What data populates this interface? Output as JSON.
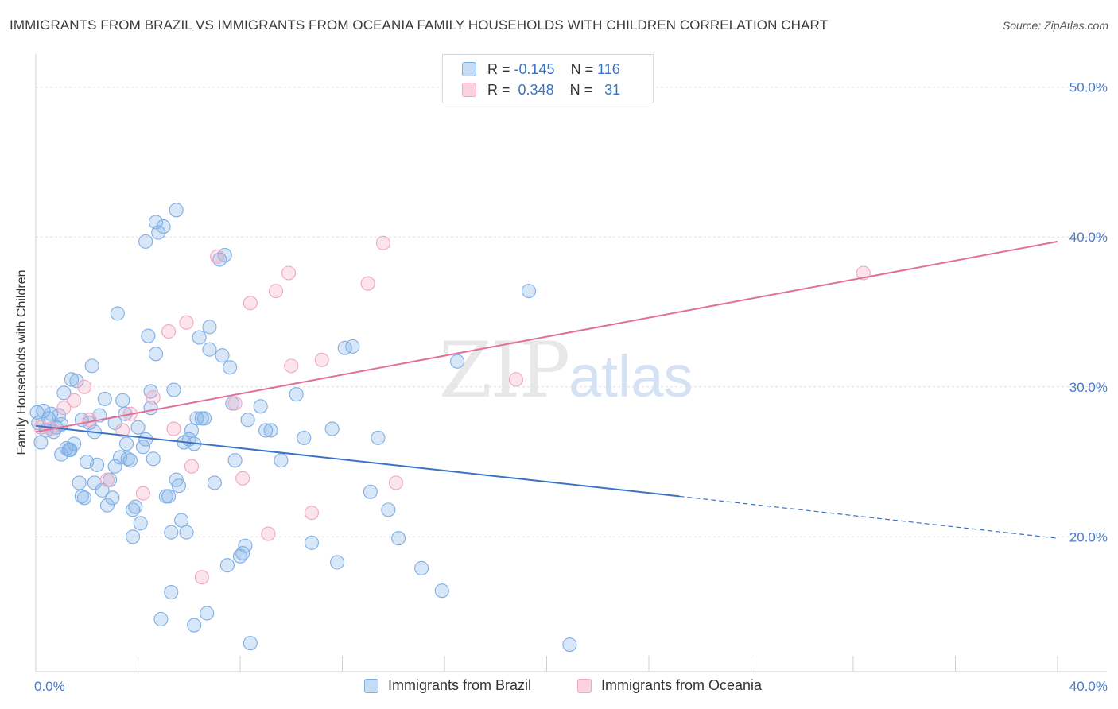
{
  "header": {
    "title": "IMMIGRANTS FROM BRAZIL VS IMMIGRANTS FROM OCEANIA FAMILY HOUSEHOLDS WITH CHILDREN CORRELATION CHART",
    "source": "Source: ZipAtlas.com"
  },
  "watermark": {
    "zip": "ZIP",
    "atlas": "atlas"
  },
  "legend_top": {
    "rows": [
      {
        "r_label": "R =",
        "r_value": "-0.145",
        "n_label": "N =",
        "n_value": "116",
        "color": "#7faee6"
      },
      {
        "r_label": "R =",
        "r_value": "0.348",
        "n_label": "N =",
        "n_value": "31",
        "color": "#f2a7bd"
      }
    ]
  },
  "legend_bottom": {
    "items": [
      {
        "label": "Immigrants from Brazil",
        "color": "#7faee6"
      },
      {
        "label": "Immigrants from Oceania",
        "color": "#f2a7bd"
      }
    ]
  },
  "chart_data": {
    "type": "scatter",
    "ylabel": "Family Households with Children",
    "xlabel": "",
    "xlim": [
      0,
      40
    ],
    "ylim": [
      11,
      52
    ],
    "x_tick_labels": [
      {
        "x": 0,
        "label": "0.0%"
      },
      {
        "x": 40,
        "label": "40.0%"
      }
    ],
    "y_tick_labels": [
      {
        "y": 20,
        "label": "20.0%"
      },
      {
        "y": 30,
        "label": "30.0%"
      },
      {
        "y": 40,
        "label": "40.0%"
      },
      {
        "y": 50,
        "label": "50.0%"
      }
    ],
    "grid": true,
    "series": [
      {
        "name": "Immigrants from Brazil",
        "color": "#7faee6",
        "line_color": "#3b73c4",
        "trend": {
          "x0": 0,
          "y0": 27.4,
          "x1": 25.2,
          "y1": 22.7,
          "dash_x1": 40,
          "dash_y1": 19.9
        },
        "points": [
          [
            0.1,
            27.6
          ],
          [
            0.2,
            26.3
          ],
          [
            0.3,
            28.4
          ],
          [
            0.4,
            27.1
          ],
          [
            0.5,
            27.9
          ],
          [
            0.6,
            28.2
          ],
          [
            0.7,
            27.0
          ],
          [
            0.8,
            27.3
          ],
          [
            0.9,
            28.1
          ],
          [
            1.0,
            27.5
          ],
          [
            1.0,
            25.5
          ],
          [
            1.1,
            29.6
          ],
          [
            1.2,
            25.9
          ],
          [
            1.3,
            25.8
          ],
          [
            1.4,
            30.5
          ],
          [
            1.5,
            26.2
          ],
          [
            1.6,
            30.4
          ],
          [
            1.7,
            23.6
          ],
          [
            1.8,
            22.7
          ],
          [
            1.8,
            27.8
          ],
          [
            1.9,
            22.6
          ],
          [
            2.0,
            25.0
          ],
          [
            2.1,
            27.6
          ],
          [
            2.2,
            31.4
          ],
          [
            2.3,
            23.6
          ],
          [
            2.3,
            27.0
          ],
          [
            2.4,
            24.8
          ],
          [
            2.5,
            28.1
          ],
          [
            2.6,
            23.1
          ],
          [
            2.7,
            29.2
          ],
          [
            2.8,
            22.1
          ],
          [
            2.9,
            23.8
          ],
          [
            3.0,
            22.6
          ],
          [
            3.1,
            24.7
          ],
          [
            3.1,
            27.6
          ],
          [
            3.2,
            34.9
          ],
          [
            3.3,
            25.3
          ],
          [
            3.4,
            29.1
          ],
          [
            3.5,
            28.2
          ],
          [
            3.6,
            25.2
          ],
          [
            3.7,
            25.1
          ],
          [
            3.8,
            21.8
          ],
          [
            3.8,
            20.0
          ],
          [
            3.9,
            22.0
          ],
          [
            4.0,
            27.3
          ],
          [
            4.1,
            20.9
          ],
          [
            4.2,
            26.0
          ],
          [
            4.3,
            26.5
          ],
          [
            4.3,
            39.7
          ],
          [
            4.4,
            33.4
          ],
          [
            4.5,
            28.6
          ],
          [
            4.5,
            29.7
          ],
          [
            4.6,
            25.2
          ],
          [
            4.7,
            41.0
          ],
          [
            4.7,
            32.2
          ],
          [
            4.8,
            40.3
          ],
          [
            4.9,
            14.5
          ],
          [
            5.0,
            40.7
          ],
          [
            5.1,
            22.7
          ],
          [
            5.2,
            22.7
          ],
          [
            5.3,
            16.3
          ],
          [
            5.3,
            20.3
          ],
          [
            5.4,
            29.8
          ],
          [
            5.5,
            41.8
          ],
          [
            5.5,
            23.8
          ],
          [
            5.6,
            23.4
          ],
          [
            5.7,
            21.1
          ],
          [
            5.8,
            26.3
          ],
          [
            5.9,
            20.3
          ],
          [
            6.0,
            26.5
          ],
          [
            6.1,
            27.1
          ],
          [
            6.2,
            26.2
          ],
          [
            6.2,
            14.1
          ],
          [
            6.3,
            27.9
          ],
          [
            6.4,
            33.3
          ],
          [
            6.5,
            27.9
          ],
          [
            6.6,
            27.9
          ],
          [
            6.7,
            14.9
          ],
          [
            6.8,
            34.0
          ],
          [
            6.8,
            32.5
          ],
          [
            7.0,
            23.6
          ],
          [
            7.2,
            38.5
          ],
          [
            7.3,
            32.1
          ],
          [
            7.4,
            38.8
          ],
          [
            7.5,
            18.1
          ],
          [
            7.6,
            31.3
          ],
          [
            7.7,
            28.9
          ],
          [
            7.8,
            25.1
          ],
          [
            8.0,
            18.7
          ],
          [
            8.1,
            18.9
          ],
          [
            8.2,
            19.4
          ],
          [
            8.3,
            27.8
          ],
          [
            8.4,
            12.9
          ],
          [
            8.8,
            28.7
          ],
          [
            9.0,
            27.1
          ],
          [
            9.2,
            27.1
          ],
          [
            9.6,
            25.1
          ],
          [
            10.2,
            29.5
          ],
          [
            10.5,
            26.6
          ],
          [
            10.8,
            19.6
          ],
          [
            11.6,
            27.2
          ],
          [
            11.8,
            18.3
          ],
          [
            12.1,
            32.6
          ],
          [
            12.4,
            32.7
          ],
          [
            13.1,
            23.0
          ],
          [
            13.4,
            26.6
          ],
          [
            13.8,
            21.8
          ],
          [
            14.2,
            19.9
          ],
          [
            15.1,
            17.9
          ],
          [
            15.9,
            16.4
          ],
          [
            16.5,
            31.7
          ],
          [
            19.3,
            36.4
          ],
          [
            20.9,
            12.8
          ],
          [
            0.05,
            28.3
          ],
          [
            1.35,
            25.8
          ],
          [
            3.55,
            26.2
          ]
        ]
      },
      {
        "name": "Immigrants from Oceania",
        "color": "#f2a7bd",
        "line_color": "#e0709a",
        "trend": {
          "x0": 0,
          "y0": 27.0,
          "x1": 40,
          "y1": 39.7
        },
        "points": [
          [
            0.2,
            27.3
          ],
          [
            0.6,
            27.2
          ],
          [
            1.1,
            28.6
          ],
          [
            1.5,
            29.1
          ],
          [
            1.9,
            30.0
          ],
          [
            2.1,
            27.8
          ],
          [
            2.8,
            23.8
          ],
          [
            3.4,
            27.1
          ],
          [
            3.7,
            28.2
          ],
          [
            4.2,
            22.9
          ],
          [
            4.6,
            29.3
          ],
          [
            5.2,
            33.7
          ],
          [
            5.4,
            27.2
          ],
          [
            5.9,
            34.3
          ],
          [
            6.1,
            24.7
          ],
          [
            6.5,
            17.3
          ],
          [
            7.1,
            38.7
          ],
          [
            7.8,
            28.9
          ],
          [
            8.1,
            23.9
          ],
          [
            8.4,
            35.6
          ],
          [
            9.1,
            20.2
          ],
          [
            9.4,
            36.4
          ],
          [
            9.9,
            37.6
          ],
          [
            10.0,
            31.4
          ],
          [
            10.8,
            21.6
          ],
          [
            11.2,
            31.8
          ],
          [
            13.0,
            36.9
          ],
          [
            13.6,
            39.6
          ],
          [
            14.1,
            23.6
          ],
          [
            18.8,
            30.5
          ],
          [
            32.4,
            37.6
          ]
        ]
      }
    ]
  }
}
